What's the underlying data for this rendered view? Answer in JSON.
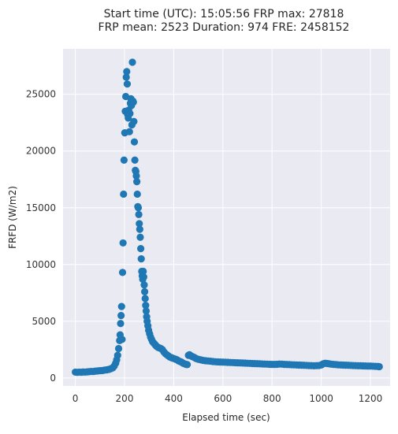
{
  "chart_data": {
    "type": "scatter",
    "title": {
      "line1": "Start time (UTC): 15:05:56 FRP max: 27818",
      "line2": "FRP mean: 2523 Duration: 974 FRE: 2458152"
    },
    "xlabel": "Elapsed time (sec)",
    "ylabel": "FRFD (W/m2)",
    "xlim": [
      -50,
      1280
    ],
    "ylim": [
      -700,
      29000
    ],
    "xticks": [
      0,
      200,
      400,
      600,
      800,
      1000,
      1200
    ],
    "yticks": [
      0,
      5000,
      10000,
      15000,
      20000,
      25000
    ],
    "grid": true,
    "background": "#eaeaf2",
    "point_color": "#1f77b4",
    "series": [
      {
        "points": [
          [
            0,
            520
          ],
          [
            8,
            500
          ],
          [
            16,
            520
          ],
          [
            24,
            510
          ],
          [
            32,
            530
          ],
          [
            40,
            520
          ],
          [
            48,
            540
          ],
          [
            56,
            560
          ],
          [
            64,
            580
          ],
          [
            72,
            570
          ],
          [
            80,
            600
          ],
          [
            88,
            620
          ],
          [
            96,
            640
          ],
          [
            104,
            650
          ],
          [
            112,
            660
          ],
          [
            120,
            700
          ],
          [
            128,
            720
          ],
          [
            136,
            760
          ],
          [
            144,
            820
          ],
          [
            152,
            900
          ],
          [
            158,
            1050
          ],
          [
            164,
            1300
          ],
          [
            168,
            1600
          ],
          [
            172,
            2000
          ],
          [
            176,
            2600
          ],
          [
            180,
            3300
          ],
          [
            182,
            3800
          ],
          [
            184,
            4800
          ],
          [
            186,
            5500
          ],
          [
            188,
            6300
          ],
          [
            190,
            3400
          ],
          [
            192,
            9300
          ],
          [
            194,
            11900
          ],
          [
            196,
            16200
          ],
          [
            198,
            19200
          ],
          [
            201,
            21600
          ],
          [
            203,
            23500
          ],
          [
            205,
            24800
          ],
          [
            207,
            26500
          ],
          [
            209,
            27000
          ],
          [
            211,
            25900
          ],
          [
            213,
            23200
          ],
          [
            215,
            22900
          ],
          [
            217,
            23600
          ],
          [
            220,
            21700
          ],
          [
            222,
            23300
          ],
          [
            224,
            24200
          ],
          [
            226,
            24600
          ],
          [
            228,
            24000
          ],
          [
            230,
            22300
          ],
          [
            232,
            27818
          ],
          [
            234,
            24400
          ],
          [
            236,
            24300
          ],
          [
            238,
            22600
          ],
          [
            240,
            20800
          ],
          [
            242,
            19200
          ],
          [
            244,
            18300
          ],
          [
            246,
            18200
          ],
          [
            248,
            17800
          ],
          [
            250,
            17300
          ],
          [
            252,
            16200
          ],
          [
            254,
            15100
          ],
          [
            256,
            15000
          ],
          [
            258,
            14400
          ],
          [
            260,
            13600
          ],
          [
            262,
            13100
          ],
          [
            264,
            12400
          ],
          [
            266,
            11400
          ],
          [
            268,
            10500
          ],
          [
            270,
            9400
          ],
          [
            272,
            9000
          ],
          [
            274,
            8700
          ],
          [
            276,
            9400
          ],
          [
            278,
            8900
          ],
          [
            280,
            8200
          ],
          [
            282,
            7600
          ],
          [
            284,
            7000
          ],
          [
            286,
            6400
          ],
          [
            288,
            5900
          ],
          [
            290,
            5400
          ],
          [
            292,
            5000
          ],
          [
            295,
            4600
          ],
          [
            298,
            4200
          ],
          [
            302,
            3900
          ],
          [
            306,
            3600
          ],
          [
            310,
            3400
          ],
          [
            314,
            3200
          ],
          [
            318,
            3100
          ],
          [
            322,
            3000
          ],
          [
            326,
            2900
          ],
          [
            330,
            2800
          ],
          [
            336,
            2700
          ],
          [
            342,
            2650
          ],
          [
            348,
            2600
          ],
          [
            354,
            2500
          ],
          [
            360,
            2300
          ],
          [
            366,
            2150
          ],
          [
            372,
            2050
          ],
          [
            378,
            1950
          ],
          [
            384,
            1850
          ],
          [
            390,
            1800
          ],
          [
            396,
            1750
          ],
          [
            402,
            1700
          ],
          [
            408,
            1650
          ],
          [
            414,
            1600
          ],
          [
            420,
            1500
          ],
          [
            426,
            1450
          ],
          [
            432,
            1400
          ],
          [
            438,
            1300
          ],
          [
            444,
            1250
          ],
          [
            450,
            1200
          ],
          [
            455,
            1180
          ],
          [
            460,
            2000
          ],
          [
            464,
            2050
          ],
          [
            468,
            1980
          ],
          [
            474,
            1900
          ],
          [
            480,
            1850
          ],
          [
            486,
            1780
          ],
          [
            492,
            1700
          ],
          [
            500,
            1650
          ],
          [
            510,
            1600
          ],
          [
            520,
            1550
          ],
          [
            530,
            1520
          ],
          [
            540,
            1500
          ],
          [
            550,
            1480
          ],
          [
            560,
            1450
          ],
          [
            570,
            1430
          ],
          [
            580,
            1420
          ],
          [
            590,
            1410
          ],
          [
            600,
            1400
          ],
          [
            610,
            1390
          ],
          [
            620,
            1380
          ],
          [
            630,
            1370
          ],
          [
            640,
            1360
          ],
          [
            650,
            1350
          ],
          [
            660,
            1340
          ],
          [
            670,
            1330
          ],
          [
            680,
            1320
          ],
          [
            690,
            1310
          ],
          [
            700,
            1300
          ],
          [
            710,
            1290
          ],
          [
            720,
            1280
          ],
          [
            730,
            1270
          ],
          [
            740,
            1260
          ],
          [
            750,
            1250
          ],
          [
            760,
            1240
          ],
          [
            770,
            1230
          ],
          [
            780,
            1220
          ],
          [
            790,
            1210
          ],
          [
            800,
            1200
          ],
          [
            810,
            1200
          ],
          [
            820,
            1210
          ],
          [
            830,
            1230
          ],
          [
            840,
            1220
          ],
          [
            850,
            1200
          ],
          [
            860,
            1190
          ],
          [
            870,
            1180
          ],
          [
            880,
            1170
          ],
          [
            890,
            1160
          ],
          [
            900,
            1150
          ],
          [
            910,
            1140
          ],
          [
            920,
            1130
          ],
          [
            930,
            1120
          ],
          [
            940,
            1110
          ],
          [
            950,
            1100
          ],
          [
            960,
            1090
          ],
          [
            970,
            1080
          ],
          [
            980,
            1090
          ],
          [
            990,
            1100
          ],
          [
            1000,
            1150
          ],
          [
            1008,
            1250
          ],
          [
            1016,
            1300
          ],
          [
            1024,
            1280
          ],
          [
            1032,
            1250
          ],
          [
            1040,
            1220
          ],
          [
            1050,
            1200
          ],
          [
            1060,
            1180
          ],
          [
            1070,
            1160
          ],
          [
            1080,
            1150
          ],
          [
            1090,
            1140
          ],
          [
            1100,
            1130
          ],
          [
            1110,
            1120
          ],
          [
            1120,
            1110
          ],
          [
            1130,
            1100
          ],
          [
            1140,
            1090
          ],
          [
            1150,
            1080
          ],
          [
            1160,
            1080
          ],
          [
            1170,
            1070
          ],
          [
            1180,
            1060
          ],
          [
            1190,
            1050
          ],
          [
            1200,
            1050
          ],
          [
            1210,
            1040
          ],
          [
            1220,
            1030
          ],
          [
            1230,
            1020
          ],
          [
            1236,
            1000
          ]
        ]
      }
    ]
  }
}
